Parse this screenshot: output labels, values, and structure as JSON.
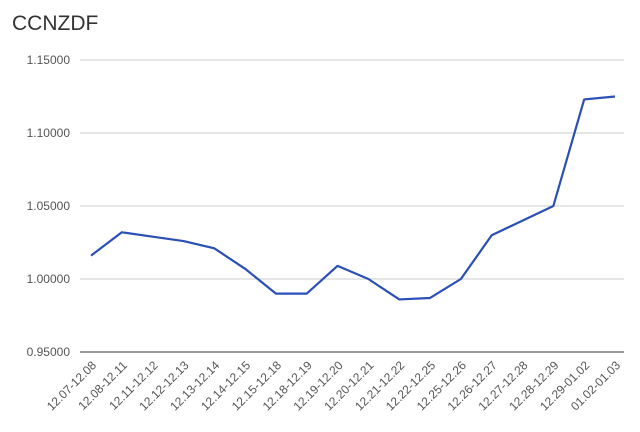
{
  "chart_data": {
    "type": "line",
    "title": "CCNZDF",
    "categories": [
      "12.07-12.08",
      "12.08-12.11",
      "12.11-12.12",
      "12.12-12.13",
      "12.13-12.14",
      "12.14-12.15",
      "12.15-12.18",
      "12.18-12.19",
      "12.19-12.20",
      "12.20-12.21",
      "12.21-12.22",
      "12.22-12.25",
      "12.25-12.26",
      "12.26-12.27",
      "12.27-12.28",
      "12.28-12.29",
      "12.29-01.02",
      "01.02-01.03"
    ],
    "values": [
      1.016,
      1.032,
      1.029,
      1.026,
      1.021,
      1.007,
      0.99,
      0.99,
      1.009,
      1.0,
      0.986,
      0.987,
      1.0,
      1.03,
      1.04,
      1.05,
      1.123,
      1.125
    ],
    "color": "#2a4fb5",
    "ylim": [
      0.95,
      1.15
    ],
    "yticks": [
      {
        "value": 0.95,
        "label": "0.95000"
      },
      {
        "value": 1.0,
        "label": "1.00000"
      },
      {
        "value": 1.05,
        "label": "1.05000"
      },
      {
        "value": 1.1,
        "label": "1.10000"
      },
      {
        "value": 1.15,
        "label": "1.15000"
      }
    ],
    "grid": true
  }
}
